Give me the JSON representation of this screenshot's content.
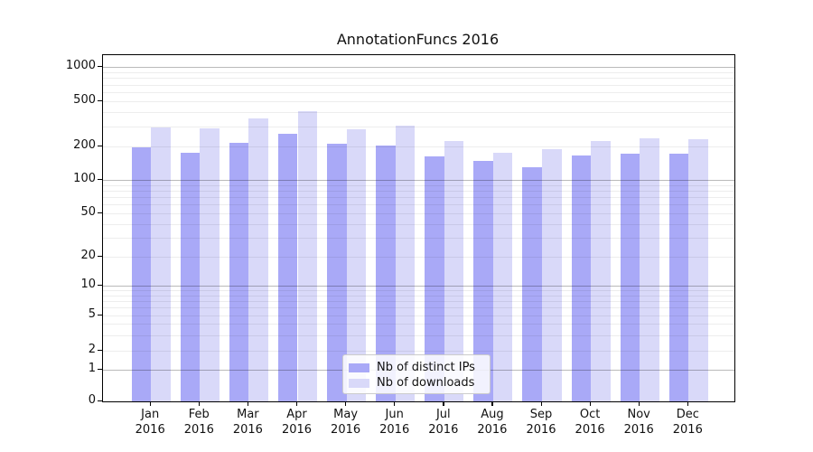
{
  "chart_data": {
    "type": "bar",
    "title": "AnnotationFuncs 2016",
    "categories": [
      "Jan",
      "Feb",
      "Mar",
      "Apr",
      "May",
      "Jun",
      "Jul",
      "Aug",
      "Sep",
      "Oct",
      "Nov",
      "Dec"
    ],
    "x_tick_year": "2016",
    "series": [
      {
        "name": "Nb of distinct IPs",
        "color": "#a9a9f7",
        "values": [
          195,
          175,
          215,
          260,
          210,
          205,
          163,
          148,
          130,
          165,
          172,
          172
        ]
      },
      {
        "name": "Nb of downloads",
        "color": "#d9d9f9",
        "values": [
          295,
          290,
          350,
          410,
          283,
          305,
          225,
          175,
          190,
          222,
          235,
          230
        ]
      }
    ],
    "y_ticks": [
      0,
      1,
      2,
      5,
      10,
      20,
      50,
      100,
      200,
      500,
      1000
    ],
    "xlabel": "",
    "ylabel": "",
    "ylim": [
      0,
      1270
    ],
    "y_scale": "symlog",
    "grid": "horizontal major+minor, drawn over bars",
    "legend_position": "lower center",
    "bar_group_gap_note": "two adjacent bars per month, dark left / light right"
  }
}
